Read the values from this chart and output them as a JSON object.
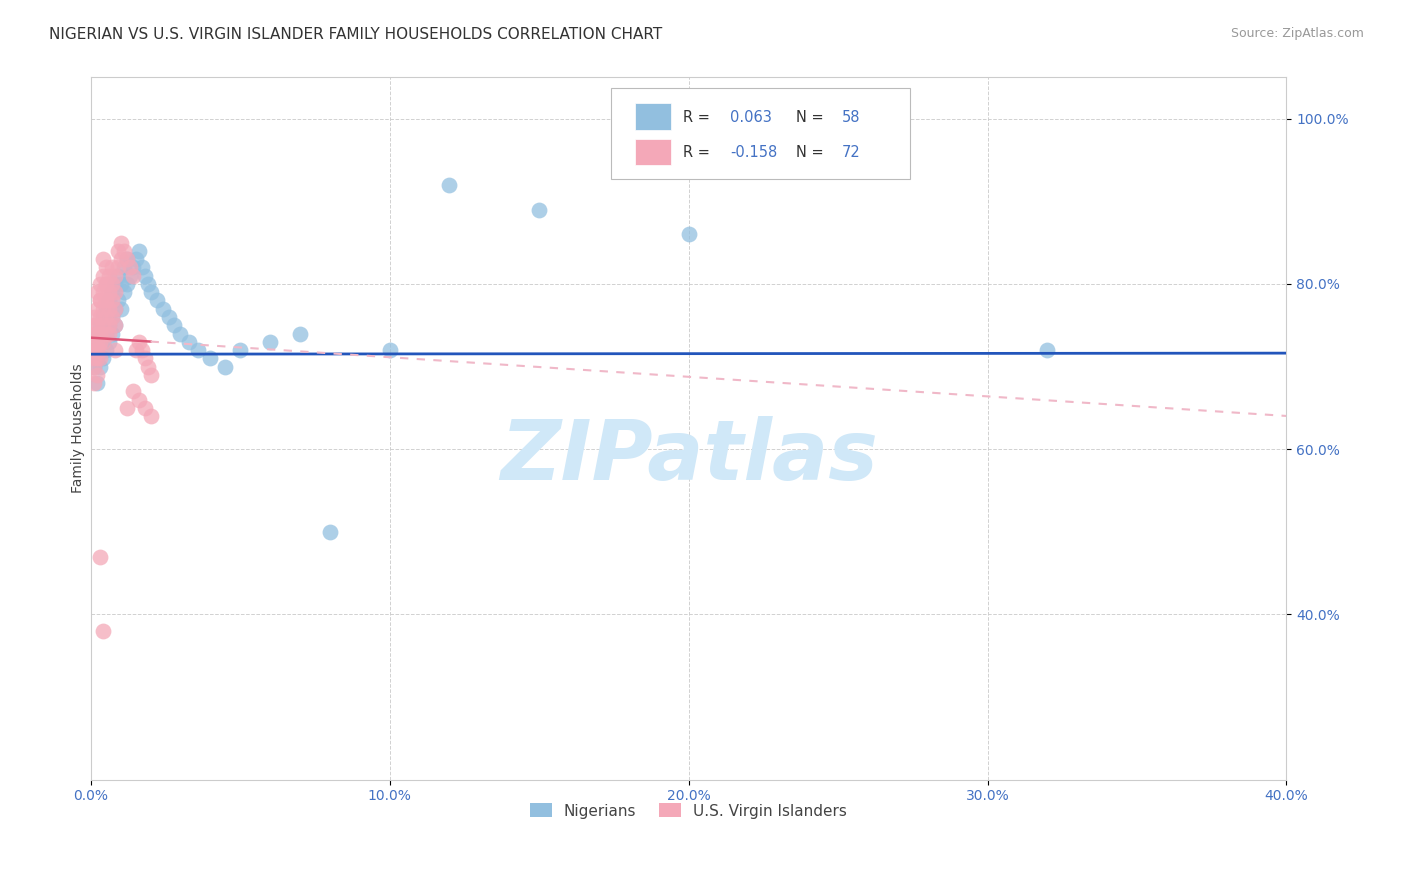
{
  "title": "NIGERIAN VS U.S. VIRGIN ISLANDER FAMILY HOUSEHOLDS CORRELATION CHART",
  "source": "Source: ZipAtlas.com",
  "ylabel": "Family Households",
  "xlim": [
    0.0,
    0.4
  ],
  "ylim": [
    0.2,
    1.05
  ],
  "xtick_labels": [
    "0.0%",
    "10.0%",
    "20.0%",
    "30.0%",
    "40.0%"
  ],
  "xtick_vals": [
    0.0,
    0.1,
    0.2,
    0.3,
    0.4
  ],
  "ytick_labels": [
    "40.0%",
    "60.0%",
    "80.0%",
    "100.0%"
  ],
  "ytick_vals": [
    0.4,
    0.6,
    0.8,
    1.0
  ],
  "legend_labels": [
    "Nigerians",
    "U.S. Virgin Islanders"
  ],
  "blue_color": "#92bfdf",
  "pink_color": "#f4a8b8",
  "blue_line_color": "#2255bb",
  "pink_line_color": "#dd5577",
  "pink_dash_color": "#f0b8c8",
  "watermark_color": "#d0e8f8",
  "blue_scatter_x": [
    0.001,
    0.001,
    0.002,
    0.002,
    0.002,
    0.003,
    0.003,
    0.003,
    0.004,
    0.004,
    0.004,
    0.005,
    0.005,
    0.005,
    0.005,
    0.006,
    0.006,
    0.006,
    0.007,
    0.007,
    0.007,
    0.008,
    0.008,
    0.008,
    0.009,
    0.009,
    0.01,
    0.01,
    0.011,
    0.011,
    0.012,
    0.012,
    0.013,
    0.014,
    0.015,
    0.016,
    0.017,
    0.018,
    0.019,
    0.02,
    0.022,
    0.024,
    0.026,
    0.028,
    0.03,
    0.033,
    0.036,
    0.04,
    0.045,
    0.05,
    0.06,
    0.07,
    0.08,
    0.1,
    0.12,
    0.15,
    0.2,
    0.32
  ],
  "blue_scatter_y": [
    0.72,
    0.7,
    0.74,
    0.71,
    0.68,
    0.75,
    0.73,
    0.7,
    0.76,
    0.73,
    0.71,
    0.77,
    0.75,
    0.72,
    0.74,
    0.78,
    0.75,
    0.73,
    0.79,
    0.76,
    0.74,
    0.8,
    0.77,
    0.75,
    0.81,
    0.78,
    0.8,
    0.77,
    0.82,
    0.79,
    0.83,
    0.8,
    0.81,
    0.82,
    0.83,
    0.84,
    0.82,
    0.81,
    0.8,
    0.79,
    0.78,
    0.77,
    0.76,
    0.75,
    0.74,
    0.73,
    0.72,
    0.71,
    0.7,
    0.72,
    0.73,
    0.74,
    0.5,
    0.72,
    0.92,
    0.89,
    0.86,
    0.72
  ],
  "pink_scatter_x": [
    0.001,
    0.001,
    0.001,
    0.001,
    0.001,
    0.001,
    0.001,
    0.001,
    0.002,
    0.002,
    0.002,
    0.002,
    0.002,
    0.002,
    0.002,
    0.002,
    0.003,
    0.003,
    0.003,
    0.003,
    0.003,
    0.003,
    0.003,
    0.003,
    0.004,
    0.004,
    0.004,
    0.004,
    0.004,
    0.004,
    0.005,
    0.005,
    0.005,
    0.005,
    0.005,
    0.005,
    0.005,
    0.006,
    0.006,
    0.006,
    0.006,
    0.006,
    0.007,
    0.007,
    0.007,
    0.007,
    0.008,
    0.008,
    0.008,
    0.008,
    0.009,
    0.009,
    0.01,
    0.01,
    0.011,
    0.012,
    0.013,
    0.014,
    0.015,
    0.016,
    0.017,
    0.018,
    0.019,
    0.02,
    0.012,
    0.014,
    0.016,
    0.018,
    0.02,
    0.008,
    0.003,
    0.004
  ],
  "pink_scatter_y": [
    0.72,
    0.74,
    0.7,
    0.68,
    0.73,
    0.76,
    0.71,
    0.75,
    0.73,
    0.69,
    0.77,
    0.74,
    0.72,
    0.79,
    0.71,
    0.75,
    0.78,
    0.76,
    0.74,
    0.72,
    0.8,
    0.71,
    0.73,
    0.78,
    0.79,
    0.77,
    0.75,
    0.73,
    0.81,
    0.83,
    0.8,
    0.78,
    0.76,
    0.74,
    0.82,
    0.8,
    0.78,
    0.81,
    0.79,
    0.77,
    0.75,
    0.74,
    0.82,
    0.8,
    0.78,
    0.76,
    0.81,
    0.79,
    0.77,
    0.75,
    0.84,
    0.82,
    0.85,
    0.83,
    0.84,
    0.83,
    0.82,
    0.81,
    0.72,
    0.73,
    0.72,
    0.71,
    0.7,
    0.69,
    0.65,
    0.67,
    0.66,
    0.65,
    0.64,
    0.72,
    0.47,
    0.38
  ],
  "title_fontsize": 11,
  "source_fontsize": 9,
  "axis_label_fontsize": 10,
  "tick_fontsize": 10,
  "watermark_fontsize": 60
}
